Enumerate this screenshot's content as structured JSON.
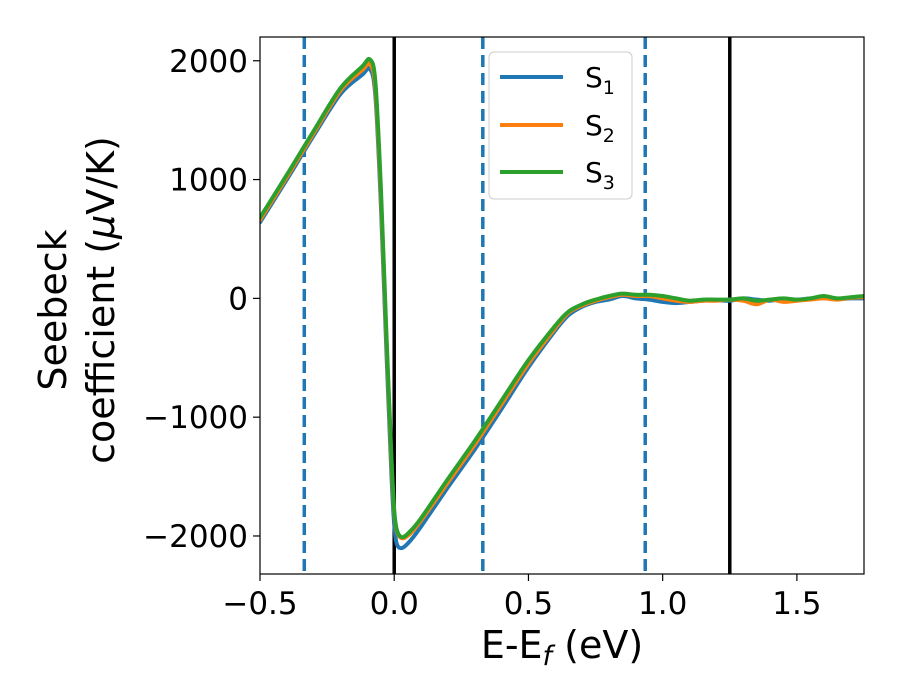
{
  "chart_data": {
    "type": "line",
    "title": "",
    "xlabel": {
      "main": "E-E",
      "sub": "f",
      "unit": " (eV)"
    },
    "ylabel": {
      "line1": "Seebeck",
      "line2_pre": "coefficient  (",
      "mu": "μ",
      "line2_post": "V/K)"
    },
    "xlim": [
      -0.5,
      1.75
    ],
    "ylim": [
      -2320,
      2200
    ],
    "xticks": [
      {
        "value": -0.5,
        "label": "−0.5"
      },
      {
        "value": 0.0,
        "label": "0.0"
      },
      {
        "value": 0.5,
        "label": "0.5"
      },
      {
        "value": 1.0,
        "label": "1.0"
      },
      {
        "value": 1.5,
        "label": "1.5"
      }
    ],
    "yticks": [
      {
        "value": 2000,
        "label": "2000"
      },
      {
        "value": 1000,
        "label": "1000"
      },
      {
        "value": 0,
        "label": "0"
      },
      {
        "value": -1000,
        "label": "−1000"
      },
      {
        "value": -2000,
        "label": "−2000"
      }
    ],
    "grid": false,
    "legend_position": "upper-center",
    "vlines_solid": [
      0.0,
      1.25
    ],
    "vlines_dashed": [
      -0.335,
      0.33,
      0.935
    ],
    "vline_solid_color": "#000000",
    "vline_dashed_color": "#1f77b4",
    "series": [
      {
        "name": "S",
        "sub": "1",
        "color": "#1f77b4",
        "x": [
          -0.5,
          -0.4,
          -0.3,
          -0.2,
          -0.12,
          -0.09,
          -0.07,
          -0.05,
          -0.03,
          -0.01,
          0.0,
          0.01,
          0.03,
          0.06,
          0.1,
          0.2,
          0.3,
          0.4,
          0.5,
          0.6,
          0.65,
          0.7,
          0.75,
          0.8,
          0.85,
          0.9,
          0.95,
          1.0,
          1.05,
          1.1,
          1.15,
          1.2,
          1.25,
          1.3,
          1.35,
          1.4,
          1.45,
          1.5,
          1.55,
          1.6,
          1.65,
          1.7,
          1.75
        ],
        "y": [
          640,
          1000,
          1370,
          1720,
          1880,
          1930,
          1700,
          800,
          -400,
          -1500,
          -1900,
          -2070,
          -2100,
          -2040,
          -1920,
          -1590,
          -1270,
          -930,
          -580,
          -270,
          -140,
          -70,
          -30,
          -10,
          20,
          0,
          -10,
          -30,
          -40,
          -30,
          -20,
          -15,
          -20,
          0,
          -10,
          -20,
          -5,
          -10,
          0,
          5,
          -5,
          0,
          0
        ]
      },
      {
        "name": "S",
        "sub": "2",
        "color": "#ff7f0e",
        "x": [
          -0.5,
          -0.4,
          -0.3,
          -0.2,
          -0.12,
          -0.09,
          -0.07,
          -0.05,
          -0.03,
          -0.01,
          0.0,
          0.01,
          0.03,
          0.06,
          0.1,
          0.2,
          0.3,
          0.4,
          0.5,
          0.6,
          0.65,
          0.7,
          0.75,
          0.8,
          0.85,
          0.9,
          0.95,
          1.0,
          1.05,
          1.1,
          1.15,
          1.2,
          1.25,
          1.3,
          1.35,
          1.4,
          1.45,
          1.5,
          1.55,
          1.6,
          1.65,
          1.7,
          1.75
        ],
        "y": [
          660,
          1020,
          1390,
          1750,
          1920,
          1970,
          1760,
          880,
          -300,
          -1400,
          -1800,
          -1960,
          -2020,
          -1980,
          -1870,
          -1550,
          -1230,
          -890,
          -550,
          -250,
          -120,
          -60,
          -20,
          10,
          30,
          20,
          20,
          0,
          -20,
          -30,
          -20,
          -20,
          -10,
          -20,
          -50,
          -10,
          -30,
          -20,
          -10,
          0,
          -10,
          5,
          10
        ]
      },
      {
        "name": "S",
        "sub": "3",
        "color": "#2ca02c",
        "x": [
          -0.5,
          -0.4,
          -0.3,
          -0.2,
          -0.12,
          -0.09,
          -0.07,
          -0.05,
          -0.03,
          -0.01,
          0.0,
          0.01,
          0.03,
          0.06,
          0.1,
          0.2,
          0.3,
          0.4,
          0.5,
          0.6,
          0.65,
          0.7,
          0.75,
          0.8,
          0.85,
          0.9,
          0.95,
          1.0,
          1.05,
          1.1,
          1.15,
          1.2,
          1.25,
          1.3,
          1.35,
          1.4,
          1.45,
          1.5,
          1.55,
          1.6,
          1.65,
          1.7,
          1.75
        ],
        "y": [
          680,
          1040,
          1410,
          1770,
          1950,
          2010,
          1820,
          950,
          -250,
          -1350,
          -1780,
          -1950,
          -2010,
          -1960,
          -1850,
          -1520,
          -1200,
          -860,
          -520,
          -230,
          -110,
          -50,
          -10,
          20,
          40,
          30,
          30,
          20,
          0,
          -20,
          -10,
          -10,
          -10,
          0,
          -20,
          -10,
          0,
          -10,
          0,
          20,
          0,
          10,
          20
        ]
      }
    ]
  }
}
